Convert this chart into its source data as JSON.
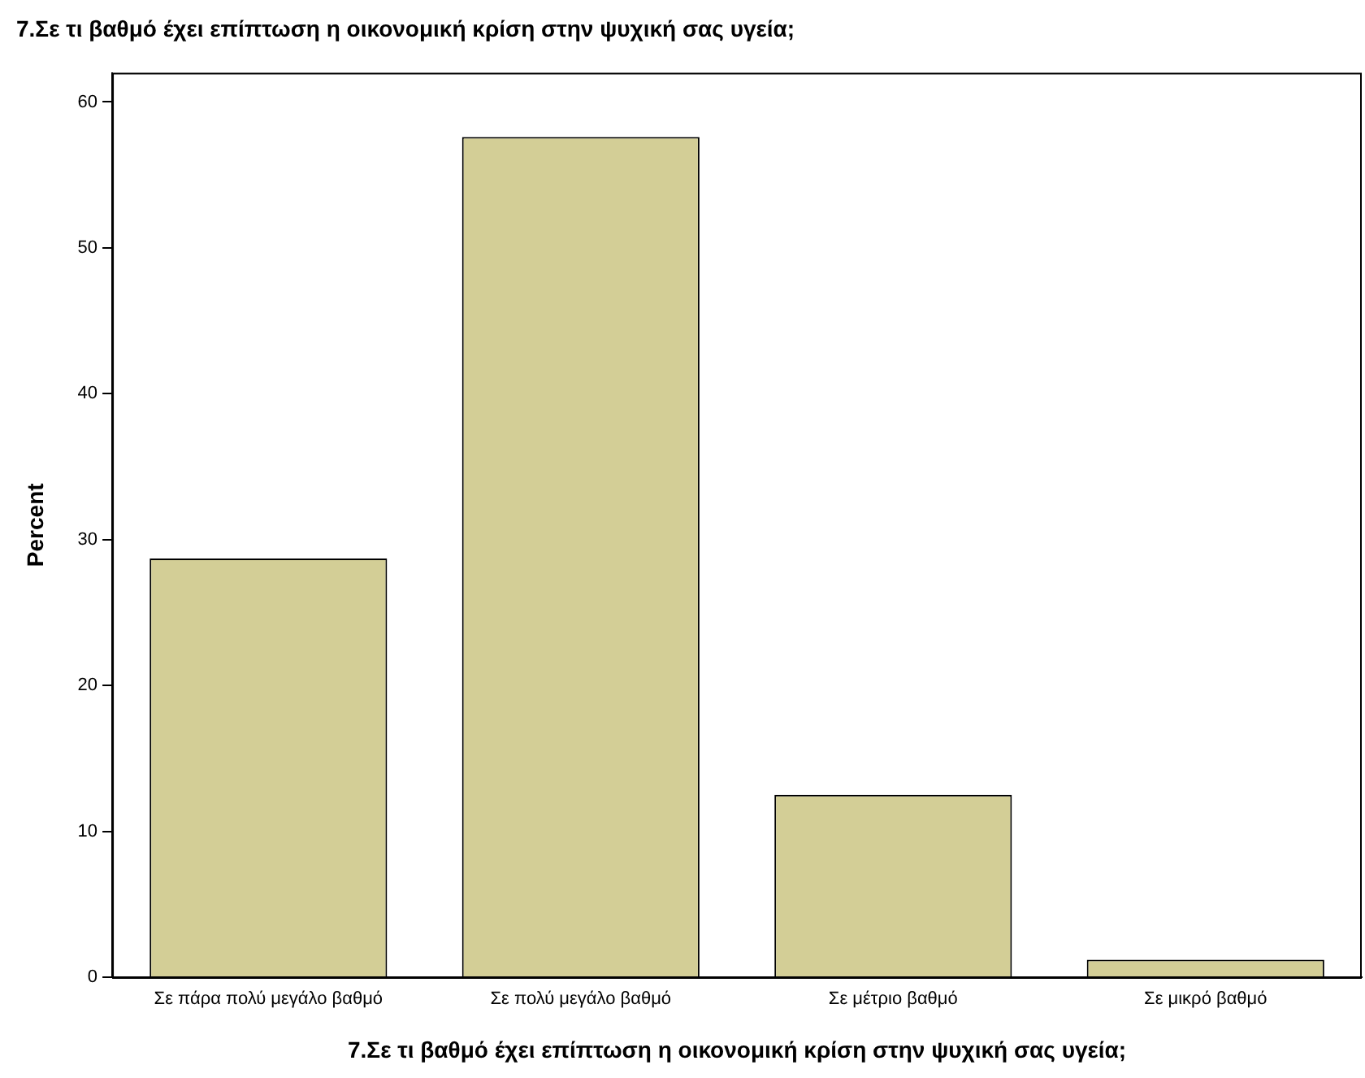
{
  "chart_data": {
    "type": "bar",
    "title": "7.Σε τι βαθμό έχει επίπτωση η οικονομική κρίση στην ψυχική σας υγεία;",
    "xlabel": "7.Σε τι βαθμό έχει επίπτωση η οικονομική κρίση στην ψυχική σας υγεία;",
    "ylabel": "Percent",
    "categories": [
      "Σε πάρα πολύ μεγάλο βαθμό",
      "Σε πολύ μεγάλο βαθμό",
      "Σε μέτριο βαθμό",
      "Σε μικρό βαθμό"
    ],
    "values": [
      28.7,
      57.6,
      12.5,
      1.2
    ],
    "color": "#d3ce96",
    "ylim": [
      0,
      62
    ],
    "yticks": [
      0,
      10,
      20,
      30,
      40,
      50,
      60
    ],
    "grid": false,
    "legend": false
  }
}
